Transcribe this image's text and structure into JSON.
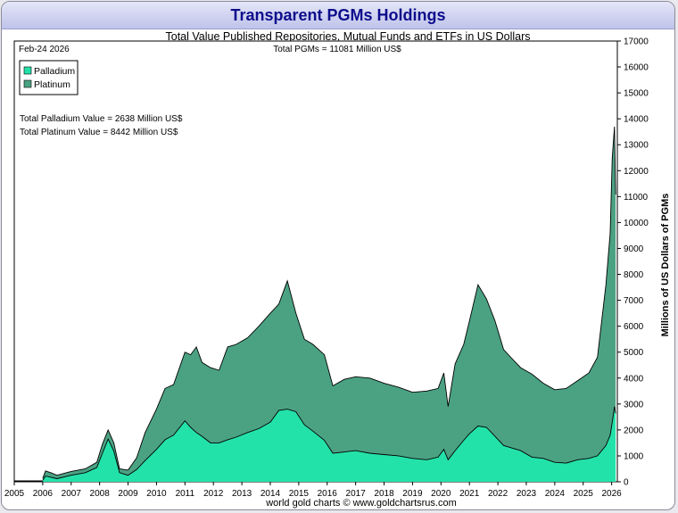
{
  "title": "Transparent PGMs Holdings",
  "subtitle": "Total Value Published Repositories, Mutual Funds and ETFs in US Dollars",
  "date_label": "Feb-24  2026",
  "total_label": "Total PGMs = 11081 Million US$",
  "palladium_value_label": "Total Palladium Value = 2638 Million US$",
  "platinum_value_label": "Total Platinum Value = 8442 Million US$",
  "footer": "world gold charts © www.goldchartsrus.com",
  "colors": {
    "palladium": "#23e2a9",
    "platinum": "#4ba283",
    "title": "#0d0d8c"
  },
  "chart_data": {
    "type": "area",
    "stacked": true,
    "title": "Transparent PGMs Holdings",
    "subtitle": "Total Value Published Repositories, Mutual Funds and ETFs in US Dollars",
    "ylabel": "Millions of US Dollars of PGMs",
    "xlabel": "",
    "ylim": [
      0,
      17000
    ],
    "xlim": [
      2005,
      2026.2
    ],
    "y_ticks": [
      "0",
      "1000",
      "2000",
      "3000",
      "4000",
      "5000",
      "6000",
      "7000",
      "8000",
      "9000",
      "10000",
      "11000",
      "12000",
      "13000",
      "14000",
      "15000",
      "16000",
      "17000"
    ],
    "x_ticks": [
      "2005",
      "2006",
      "2007",
      "2008",
      "2009",
      "2010",
      "2011",
      "2012",
      "2013",
      "2014",
      "2015",
      "2016",
      "2017",
      "2018",
      "2019",
      "2020",
      "2021",
      "2022",
      "2023",
      "2024",
      "2025",
      "2026"
    ],
    "grid": false,
    "legend_position": "top-left",
    "series": [
      {
        "name": "Palladium",
        "x": [
          2006.0,
          2006.1,
          2006.3,
          2006.5,
          2007.0,
          2007.5,
          2007.9,
          2008.1,
          2008.3,
          2008.5,
          2008.7,
          2009.0,
          2009.3,
          2009.6,
          2010.0,
          2010.3,
          2010.6,
          2011.0,
          2011.2,
          2011.4,
          2011.6,
          2011.9,
          2012.2,
          2012.5,
          2012.8,
          2013.2,
          2013.6,
          2014.0,
          2014.3,
          2014.6,
          2014.9,
          2015.2,
          2015.5,
          2015.9,
          2016.2,
          2016.6,
          2017.0,
          2017.5,
          2018.0,
          2018.5,
          2019.0,
          2019.5,
          2019.9,
          2020.1,
          2020.25,
          2020.5,
          2020.8,
          2021.0,
          2021.3,
          2021.6,
          2021.9,
          2022.2,
          2022.5,
          2022.8,
          2023.2,
          2023.6,
          2024.0,
          2024.4,
          2024.8,
          2025.2,
          2025.5,
          2025.8,
          2025.95,
          2026.02,
          2026.1,
          2026.14
        ],
        "values": [
          60,
          220,
          170,
          120,
          250,
          350,
          550,
          1100,
          1650,
          1180,
          350,
          250,
          470,
          820,
          1250,
          1620,
          1800,
          2350,
          2100,
          1900,
          1750,
          1500,
          1500,
          1620,
          1720,
          1900,
          2050,
          2300,
          2750,
          2800,
          2700,
          2200,
          1950,
          1600,
          1100,
          1150,
          1200,
          1100,
          1050,
          1000,
          900,
          850,
          950,
          1250,
          850,
          1200,
          1600,
          1850,
          2150,
          2100,
          1750,
          1400,
          1300,
          1200,
          950,
          900,
          750,
          720,
          850,
          900,
          1000,
          1400,
          1800,
          2300,
          2900,
          2638
        ]
      },
      {
        "name": "Platinum",
        "x": [
          2006.0,
          2006.1,
          2006.3,
          2006.5,
          2007.0,
          2007.5,
          2007.9,
          2008.1,
          2008.3,
          2008.5,
          2008.7,
          2009.0,
          2009.3,
          2009.6,
          2010.0,
          2010.3,
          2010.6,
          2011.0,
          2011.2,
          2011.4,
          2011.6,
          2011.9,
          2012.2,
          2012.5,
          2012.8,
          2013.2,
          2013.6,
          2014.0,
          2014.3,
          2014.6,
          2014.9,
          2015.2,
          2015.5,
          2015.9,
          2016.2,
          2016.6,
          2017.0,
          2017.5,
          2018.0,
          2018.5,
          2019.0,
          2019.5,
          2019.9,
          2020.1,
          2020.25,
          2020.5,
          2020.8,
          2021.0,
          2021.3,
          2021.6,
          2021.9,
          2022.2,
          2022.5,
          2022.8,
          2023.2,
          2023.6,
          2024.0,
          2024.4,
          2024.8,
          2025.2,
          2025.5,
          2025.8,
          2025.95,
          2026.02,
          2026.1,
          2026.14
        ],
        "values": [
          80,
          200,
          170,
          130,
          150,
          150,
          200,
          350,
          350,
          320,
          150,
          200,
          450,
          1080,
          1550,
          1980,
          1950,
          2650,
          2800,
          3300,
          2850,
          2900,
          2800,
          3580,
          3580,
          3650,
          3950,
          4200,
          4100,
          4950,
          3800,
          3300,
          3350,
          3300,
          2600,
          2800,
          2850,
          2900,
          2750,
          2650,
          2550,
          2650,
          2650,
          2950,
          2050,
          3350,
          3700,
          4350,
          5450,
          4950,
          4450,
          3700,
          3450,
          3200,
          3200,
          2900,
          2800,
          2880,
          3050,
          3300,
          3800,
          6200,
          7800,
          10200,
          10800,
          8442
        ]
      }
    ],
    "annotations": [
      "Feb-24  2026",
      "Total PGMs = 11081 Million US$",
      "Total Palladium Value = 2638 Million US$",
      "Total Platinum Value = 8442 Million US$"
    ]
  }
}
